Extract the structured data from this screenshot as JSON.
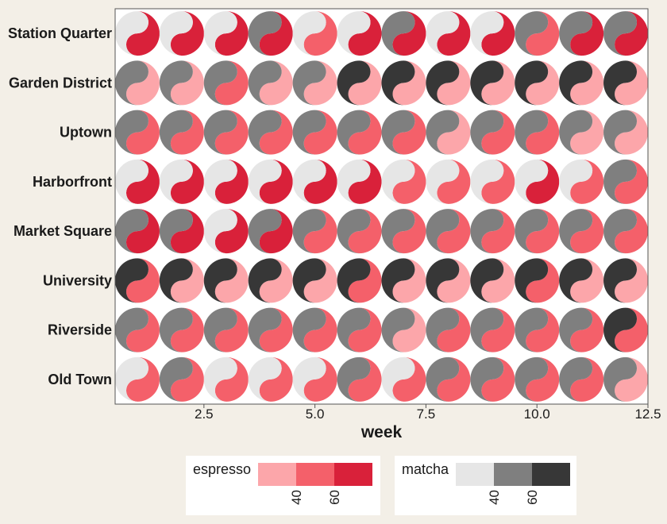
{
  "chart_data": {
    "type": "heatmap",
    "glyph": "yin-yang",
    "xlabel": "week",
    "ylabel": "",
    "title": "",
    "xlim": [
      0.5,
      12.5
    ],
    "xticks": [
      2.5,
      5.0,
      7.5,
      10.0,
      12.5
    ],
    "xtick_labels": [
      "2.5",
      "5.0",
      "7.5",
      "10.0",
      "12.5"
    ],
    "x": [
      1,
      2,
      3,
      4,
      5,
      6,
      7,
      8,
      9,
      10,
      11,
      12
    ],
    "categories": [
      "Station Quarter",
      "Garden District",
      "Uptown",
      "Harborfront",
      "Market Square",
      "University",
      "Riverside",
      "Old Town"
    ],
    "espresso_levels": {
      "Station Quarter": [
        3,
        3,
        3,
        3,
        2,
        3,
        3,
        3,
        3,
        2,
        3,
        3
      ],
      "Garden District": [
        1,
        1,
        2,
        1,
        1,
        1,
        1,
        1,
        1,
        1,
        1,
        1
      ],
      "Uptown": [
        2,
        2,
        2,
        2,
        2,
        2,
        2,
        1,
        2,
        2,
        1,
        1
      ],
      "Harborfront": [
        3,
        3,
        3,
        3,
        3,
        3,
        2,
        2,
        2,
        3,
        2,
        2
      ],
      "Market Square": [
        3,
        3,
        3,
        3,
        2,
        2,
        2,
        2,
        2,
        2,
        2,
        2
      ],
      "University": [
        2,
        1,
        1,
        1,
        1,
        2,
        1,
        1,
        1,
        2,
        1,
        1
      ],
      "Riverside": [
        2,
        2,
        2,
        2,
        2,
        2,
        1,
        2,
        2,
        2,
        2,
        2
      ],
      "Old Town": [
        2,
        2,
        2,
        2,
        2,
        2,
        2,
        2,
        2,
        2,
        2,
        1
      ]
    },
    "matcha_levels": {
      "Station Quarter": [
        1,
        1,
        1,
        2,
        1,
        1,
        2,
        1,
        1,
        2,
        2,
        2
      ],
      "Garden District": [
        2,
        2,
        2,
        2,
        2,
        3,
        3,
        3,
        3,
        3,
        3,
        3
      ],
      "Uptown": [
        2,
        2,
        2,
        2,
        2,
        2,
        2,
        2,
        2,
        2,
        2,
        2
      ],
      "Harborfront": [
        1,
        1,
        1,
        1,
        1,
        1,
        1,
        1,
        1,
        1,
        1,
        2
      ],
      "Market Square": [
        2,
        2,
        1,
        2,
        2,
        2,
        2,
        2,
        2,
        2,
        2,
        2
      ],
      "University": [
        3,
        3,
        3,
        3,
        3,
        3,
        3,
        3,
        3,
        3,
        3,
        3
      ],
      "Riverside": [
        2,
        2,
        2,
        2,
        2,
        2,
        2,
        2,
        2,
        2,
        2,
        3
      ],
      "Old Town": [
        1,
        2,
        1,
        1,
        1,
        2,
        1,
        2,
        2,
        2,
        2,
        2
      ]
    },
    "legend": [
      {
        "name": "espresso",
        "colors": [
          "#fca6aa",
          "#f4606a",
          "#d9213a"
        ],
        "tick_labels": [
          "40",
          "60"
        ]
      },
      {
        "name": "matcha",
        "colors": [
          "#e6e6e6",
          "#7f7f7f",
          "#373737"
        ],
        "tick_labels": [
          "40",
          "60"
        ]
      }
    ],
    "legend_placement": "bottom",
    "grid": false
  }
}
